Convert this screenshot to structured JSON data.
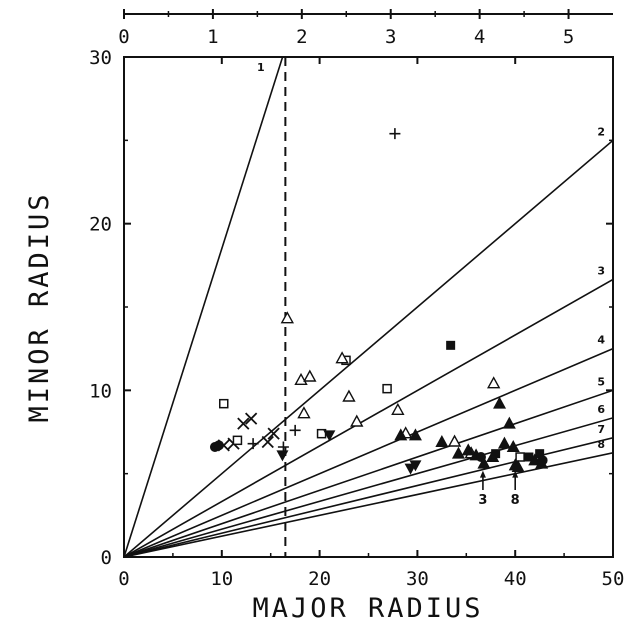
{
  "chart_data": {
    "type": "scatter",
    "title": "",
    "xlabel": "MAJOR RADIUS",
    "ylabel": "MINOR RADIUS",
    "xlim": [
      0,
      50
    ],
    "ylim": [
      0,
      30
    ],
    "x_ticks": [
      "0",
      "10",
      "20",
      "30",
      "40",
      "50"
    ],
    "y_ticks": [
      "0",
      "10",
      "20",
      "30"
    ],
    "top_axis": {
      "range": [
        0,
        5.5
      ],
      "ticks": [
        "0",
        "1",
        "2",
        "3",
        "4",
        "5"
      ]
    },
    "grid": false,
    "reference_line": {
      "x": 16.5,
      "style": "dashed"
    },
    "aspect_lines": [
      {
        "label": "1",
        "slope": 1.85
      },
      {
        "label": "2",
        "slope": 0.5
      },
      {
        "label": "3",
        "slope": 0.333
      },
      {
        "label": "4",
        "slope": 0.25
      },
      {
        "label": "5",
        "slope": 0.2
      },
      {
        "label": "6",
        "slope": 0.167
      },
      {
        "label": "7",
        "slope": 0.143
      },
      {
        "label": "8",
        "slope": 0.125
      }
    ],
    "series": [
      {
        "marker": "plus",
        "points": [
          [
            27.7,
            25.4
          ],
          [
            13.2,
            6.8
          ],
          [
            17.5,
            7.6
          ],
          [
            16.3,
            6.6
          ]
        ]
      },
      {
        "marker": "cross",
        "points": [
          [
            10.2,
            6.7
          ],
          [
            11.2,
            6.8
          ],
          [
            12.2,
            8.0
          ],
          [
            13.0,
            8.3
          ],
          [
            14.7,
            6.9
          ],
          [
            15.3,
            7.4
          ]
        ]
      },
      {
        "marker": "open-square",
        "points": [
          [
            10.2,
            9.2
          ],
          [
            11.6,
            7.0
          ],
          [
            22.7,
            11.8
          ],
          [
            20.2,
            7.4
          ],
          [
            26.9,
            10.1
          ],
          [
            40.5,
            6.0
          ]
        ]
      },
      {
        "marker": "open-triangle",
        "points": [
          [
            16.7,
            14.3
          ],
          [
            18.1,
            10.6
          ],
          [
            19.0,
            10.8
          ],
          [
            18.4,
            8.6
          ],
          [
            22.3,
            11.9
          ],
          [
            23.0,
            9.6
          ],
          [
            23.8,
            8.1
          ],
          [
            28.0,
            8.8
          ],
          [
            28.8,
            7.4
          ],
          [
            33.8,
            6.9
          ],
          [
            35.5,
            6.2
          ],
          [
            37.8,
            10.4
          ]
        ]
      },
      {
        "marker": "filled-triangle",
        "points": [
          [
            28.3,
            7.3
          ],
          [
            29.8,
            7.3
          ],
          [
            32.5,
            6.9
          ],
          [
            34.2,
            6.2
          ],
          [
            35.2,
            6.4
          ],
          [
            36.0,
            6.1
          ],
          [
            36.8,
            5.6
          ],
          [
            37.7,
            6.0
          ],
          [
            38.4,
            9.2
          ],
          [
            38.9,
            6.8
          ],
          [
            39.4,
            8.0
          ],
          [
            39.8,
            6.6
          ],
          [
            40.0,
            5.5
          ],
          [
            40.3,
            5.4
          ],
          [
            42.0,
            5.8
          ],
          [
            42.7,
            5.6
          ]
        ]
      },
      {
        "marker": "filled-inverted-triangle",
        "points": [
          [
            16.2,
            6.1
          ],
          [
            21.0,
            7.3
          ],
          [
            29.3,
            5.3
          ],
          [
            29.8,
            5.5
          ]
        ]
      },
      {
        "marker": "filled-square",
        "points": [
          [
            33.4,
            12.7
          ],
          [
            38.0,
            6.2
          ],
          [
            41.4,
            6.0
          ],
          [
            42.5,
            6.2
          ]
        ]
      },
      {
        "marker": "filled-circle",
        "points": [
          [
            9.3,
            6.6
          ],
          [
            9.7,
            6.7
          ],
          [
            36.5,
            6.0
          ],
          [
            42.8,
            5.8
          ]
        ]
      }
    ],
    "annotations": [
      {
        "text": "3",
        "x": 36.7,
        "y": 3.3,
        "arrow_to": [
          36.7,
          5.3
        ]
      },
      {
        "text": "8",
        "x": 40.0,
        "y": 3.3,
        "arrow_to": [
          40.0,
          5.3
        ]
      }
    ],
    "colors": {
      "ink": "#111111",
      "background": "#ffffff"
    }
  }
}
